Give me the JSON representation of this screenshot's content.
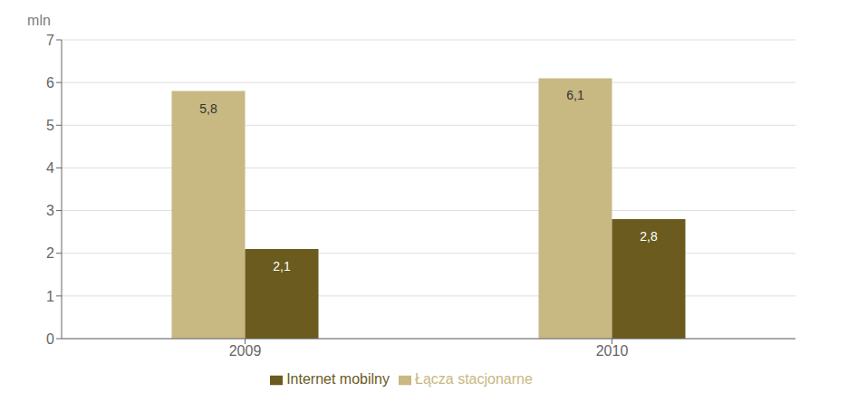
{
  "chart_data": {
    "type": "bar",
    "categories": [
      "2009",
      "2010"
    ],
    "series": [
      {
        "name": "Łącza stacjonarne",
        "color": "#C8B882",
        "values": [
          5.8,
          6.1
        ],
        "value_labels": [
          "5,8",
          "6,1"
        ]
      },
      {
        "name": "Internet mobilny",
        "color": "#6B5B1E",
        "values": [
          2.1,
          2.8
        ],
        "value_labels": [
          "2,1",
          "2,8"
        ]
      }
    ],
    "ylabel": "mln",
    "ylim": [
      0,
      7
    ],
    "yticks": [
      0,
      1,
      2,
      3,
      4,
      5,
      6,
      7
    ],
    "grid": true,
    "legend": "bottom",
    "data_labels": true
  }
}
